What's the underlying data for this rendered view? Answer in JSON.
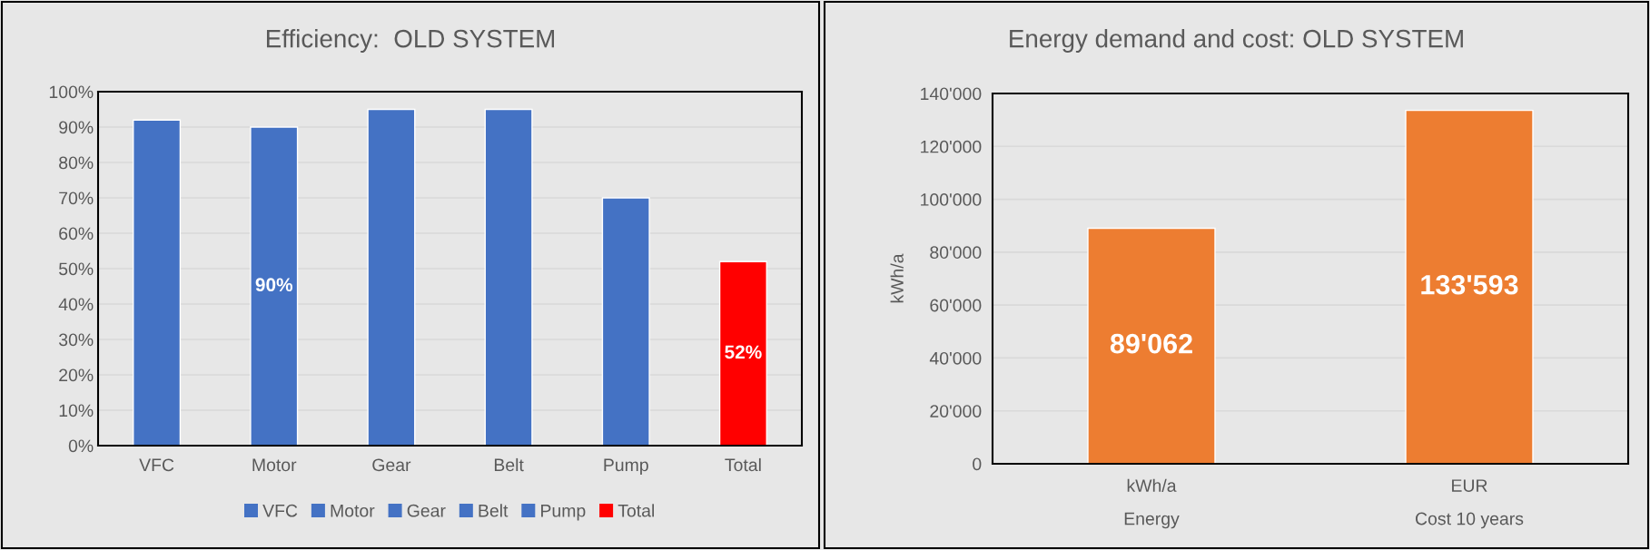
{
  "chart_data": [
    {
      "type": "bar",
      "title": "Efficiency:  OLD SYSTEM",
      "categories": [
        "VFC",
        "Motor",
        "Gear",
        "Belt",
        "Pump",
        "Total"
      ],
      "series": [
        {
          "name": "VFC",
          "color": "#4472c4",
          "values": [
            92,
            null,
            null,
            null,
            null,
            null
          ]
        },
        {
          "name": "Motor",
          "color": "#4472c4",
          "values": [
            null,
            90,
            null,
            null,
            null,
            null
          ],
          "value_labels": [
            null,
            "90%",
            null,
            null,
            null,
            null
          ]
        },
        {
          "name": "Gear",
          "color": "#4472c4",
          "values": [
            null,
            null,
            95,
            null,
            null,
            null
          ]
        },
        {
          "name": "Belt",
          "color": "#4472c4",
          "values": [
            null,
            null,
            null,
            95,
            null,
            null
          ]
        },
        {
          "name": "Pump",
          "color": "#4472c4",
          "values": [
            null,
            null,
            null,
            null,
            70,
            null
          ]
        },
        {
          "name": "Total",
          "color": "#ff0000",
          "values": [
            null,
            null,
            null,
            null,
            null,
            52
          ],
          "value_labels": [
            null,
            null,
            null,
            null,
            null,
            "52%"
          ]
        }
      ],
      "ylim": [
        0,
        100
      ],
      "yticks": [
        {
          "value": 0,
          "label": "0%"
        },
        {
          "value": 10,
          "label": "10%"
        },
        {
          "value": 20,
          "label": "20%"
        },
        {
          "value": 30,
          "label": "30%"
        },
        {
          "value": 40,
          "label": "40%"
        },
        {
          "value": 50,
          "label": "50%"
        },
        {
          "value": 60,
          "label": "60%"
        },
        {
          "value": 70,
          "label": "70%"
        },
        {
          "value": 80,
          "label": "80%"
        },
        {
          "value": 90,
          "label": "90%"
        },
        {
          "value": 100,
          "label": "100%"
        }
      ],
      "grid": "y",
      "legend": "bottom"
    },
    {
      "type": "bar",
      "title": "Energy demand and cost: OLD SYSTEM",
      "ylabel": "kWh/a",
      "categories": [
        "kWh/a\nEnergy",
        "EUR\nCost 10 years"
      ],
      "values": [
        89062,
        133593
      ],
      "colors": [
        "#ed7d31",
        "#ed7d31"
      ],
      "value_labels": [
        "89'062",
        "133'593"
      ],
      "ylim": [
        0,
        140000
      ],
      "yticks": [
        0,
        {
          "value": 20000,
          "label": "20'000"
        },
        {
          "value": 40000,
          "label": "40'000"
        },
        {
          "value": 60000,
          "label": "60'000"
        },
        {
          "value": 80000,
          "label": "80'000"
        },
        {
          "value": 100000,
          "label": "100'000"
        },
        {
          "value": 120000,
          "label": "120'000"
        },
        {
          "value": 140000,
          "label": "140'000"
        }
      ],
      "grid": "y"
    }
  ]
}
